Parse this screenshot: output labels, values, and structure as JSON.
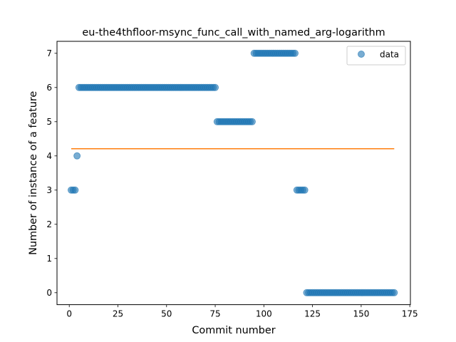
{
  "chart_data": {
    "type": "scatter",
    "title": "eu-the4thfloor-msync_func_call_with_named_arg-logarithm",
    "xlabel": "Commit number",
    "ylabel": "Number of instance of a feature",
    "xlim": [
      -6.3,
      175.3
    ],
    "ylim": [
      -0.35,
      7.35
    ],
    "xticks": [
      0,
      25,
      50,
      75,
      100,
      125,
      150,
      175
    ],
    "yticks": [
      0,
      1,
      2,
      3,
      4,
      5,
      6,
      7
    ],
    "grid": false,
    "legend": {
      "placement": "top-right",
      "entries": [
        "data"
      ]
    },
    "colors": {
      "scatter": "#1f77b4",
      "line": "#ff7f0e"
    },
    "series": [
      {
        "name": "data",
        "type": "scatter",
        "segments": [
          {
            "x_start": 1,
            "x_end": 3,
            "y": 3
          },
          {
            "x_start": 4,
            "x_end": 4,
            "y": 4
          },
          {
            "x_start": 5,
            "x_end": 75,
            "y": 6
          },
          {
            "x_start": 76,
            "x_end": 94,
            "y": 5
          },
          {
            "x_start": 95,
            "x_end": 116,
            "y": 7
          },
          {
            "x_start": 117,
            "x_end": 121,
            "y": 3
          },
          {
            "x_start": 122,
            "x_end": 167,
            "y": 0
          }
        ]
      },
      {
        "type": "line",
        "x": [
          1,
          167
        ],
        "y": [
          4.21,
          4.21
        ]
      }
    ]
  }
}
